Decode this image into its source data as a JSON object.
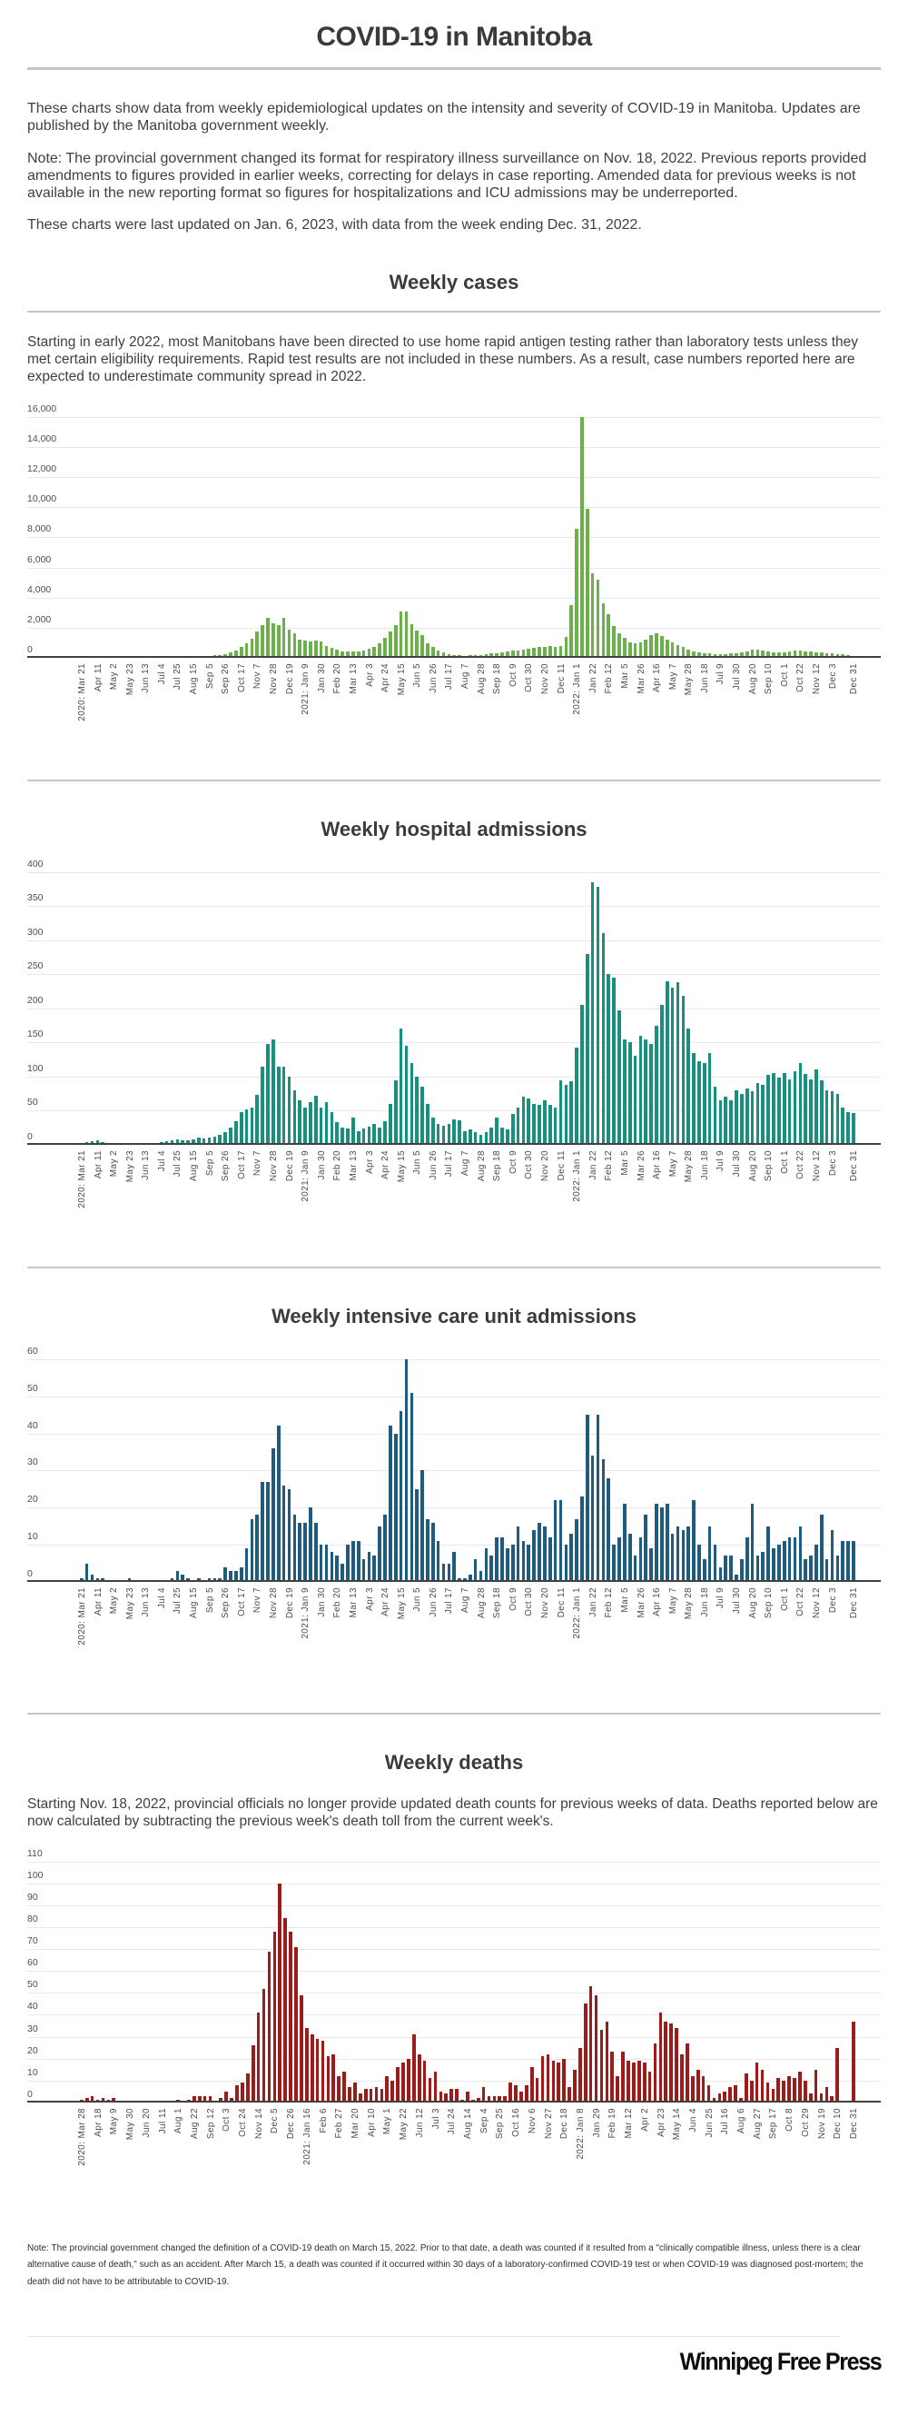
{
  "page": {
    "title": "COVID-19 in Manitoba",
    "intro_1": "These charts show data from weekly epidemiological updates on the intensity and severity of COVID-19 in Manitoba. Updates are published by the Manitoba government weekly.",
    "intro_2": "Note: The provincial government changed its format for respiratory illness surveillance on Nov. 18, 2022. Previous reports provided amendments to figures provided in earlier weeks, correcting for delays in case reporting. Amended data for previous weeks is not available in the new reporting format so figures for hospitalizations and ICU admissions may be underreported.",
    "intro_3": "These charts were last updated on Jan. 6, 2023, with data from the week ending Dec. 31, 2022.",
    "footer_note": "Note: The provincial government changed the definition of a COVID-19 death on March 15, 2022.  Prior to that date, a death was counted if it resulted from a \"clinically compatible illness, unless there is a clear alternative cause of death,\" such as an accident.  After March 15, a death was counted if it occurred within 30 days of a laboratory-confirmed COVID-19 test or when COVID-19 was diagnosed post-mortem; the death did not have to be attributable to COVID-19.",
    "publisher": "Winnipeg Free Press"
  },
  "sections": {
    "cases": {
      "title": "Weekly cases",
      "description": "Starting in early 2022, most Manitobans have been directed to use home rapid antigen testing rather than laboratory tests unless they met certain eligibility requirements. Rapid test results are not included in these numbers. As a result, case numbers reported here are expected to underestimate community spread in 2022."
    },
    "hospital": {
      "title": "Weekly hospital admissions"
    },
    "icu": {
      "title": "Weekly intensive care unit admissions"
    },
    "deaths": {
      "title": "Weekly deaths",
      "description": "Starting Nov. 18, 2022, provincial officials no longer provide updated death counts for previous weeks of data.  Deaths reported below are now calculated by subtracting the previous week's death toll from the current week's."
    }
  },
  "chart_data": [
    {
      "type": "bar",
      "title": "Weekly cases",
      "color": "#6cb04c",
      "ylim": [
        0,
        16000
      ],
      "y_step": 2000,
      "y_tick_labels": [
        "0",
        "2,000",
        "4,000",
        "6,000",
        "8,000",
        "10,000",
        "12,000",
        "14,000",
        "16,000"
      ],
      "x_tick_idx": [
        0,
        3,
        6,
        9,
        12,
        15,
        18,
        21,
        24,
        27,
        30,
        33,
        36,
        39,
        42,
        45,
        48,
        51,
        54,
        57,
        60,
        63,
        66,
        69,
        72,
        75,
        78,
        81,
        84,
        87,
        90,
        93,
        96,
        99,
        102,
        105,
        108,
        111,
        114,
        117,
        120,
        123,
        126,
        129,
        132,
        135,
        138,
        141,
        145
      ],
      "x_tick_labels": [
        "2020: Mar 21",
        "Apr 11",
        "May 2",
        "May 23",
        "Jun 13",
        "Jul 4",
        "Jul 25",
        "Aug 15",
        "Sep 5",
        "Sep 26",
        "Oct 17",
        "Nov 7",
        "Nov 28",
        "Dec 19",
        "2021: Jan 9",
        "Jan 30",
        "Feb 20",
        "Mar 13",
        "Apr 3",
        "Apr 24",
        "May 15",
        "Jun 5",
        "Jun 26",
        "Jul 17",
        "Aug 7",
        "Aug 28",
        "Sep 18",
        "Oct 9",
        "Oct 30",
        "Nov 20",
        "Dec 11",
        "2022: Jan 1",
        "Jan 22",
        "Feb 12",
        "Mar 5",
        "Mar 26",
        "Apr 16",
        "May 7",
        "May 28",
        "Jun 18",
        "Jul 9",
        "Jul 30",
        "Aug 20",
        "Sep 10",
        "Oct 1",
        "Oct 22",
        "Nov 12",
        "Dec 3",
        "Dec 31"
      ],
      "values": [
        20,
        35,
        60,
        55,
        40,
        30,
        25,
        15,
        10,
        10,
        15,
        10,
        15,
        10,
        15,
        20,
        30,
        40,
        60,
        80,
        70,
        90,
        110,
        130,
        120,
        150,
        200,
        250,
        350,
        500,
        700,
        950,
        1250,
        1750,
        2150,
        2650,
        2300,
        2200,
        2650,
        1900,
        1600,
        1200,
        1150,
        1100,
        1150,
        1100,
        800,
        650,
        550,
        450,
        400,
        400,
        450,
        500,
        600,
        750,
        950,
        1300,
        1750,
        2150,
        3100,
        3050,
        2250,
        1800,
        1500,
        950,
        700,
        500,
        350,
        250,
        200,
        150,
        140,
        150,
        170,
        200,
        250,
        300,
        330,
        380,
        420,
        460,
        500,
        560,
        620,
        660,
        700,
        750,
        800,
        720,
        780,
        1400,
        3500,
        8600,
        16000,
        9900,
        5600,
        5200,
        3600,
        2900,
        2100,
        1600,
        1300,
        1050,
        950,
        1000,
        1200,
        1500,
        1650,
        1450,
        1200,
        1050,
        850,
        700,
        550,
        450,
        380,
        320,
        270,
        230,
        210,
        230,
        270,
        310,
        360,
        430,
        520,
        560,
        470,
        420,
        380,
        360,
        390,
        430,
        460,
        480,
        440,
        410,
        380,
        350,
        320,
        290,
        260,
        220,
        170,
        120
      ]
    },
    {
      "type": "bar",
      "title": "Weekly hospital admissions",
      "color": "#17907e",
      "ylim": [
        0,
        400
      ],
      "y_step": 50,
      "y_tick_labels": [
        "0",
        "50",
        "100",
        "150",
        "200",
        "250",
        "300",
        "350",
        "400"
      ],
      "x_tick_idx": [
        0,
        3,
        6,
        9,
        12,
        15,
        18,
        21,
        24,
        27,
        30,
        33,
        36,
        39,
        42,
        45,
        48,
        51,
        54,
        57,
        60,
        63,
        66,
        69,
        72,
        75,
        78,
        81,
        84,
        87,
        90,
        93,
        96,
        99,
        102,
        105,
        108,
        111,
        114,
        117,
        120,
        123,
        126,
        129,
        132,
        135,
        138,
        141,
        145
      ],
      "x_tick_labels": [
        "2020: Mar 21",
        "Apr 11",
        "May 2",
        "May 23",
        "Jun 13",
        "Jul 4",
        "Jul 25",
        "Aug 15",
        "Sep 5",
        "Sep 26",
        "Oct 17",
        "Nov 7",
        "Nov 28",
        "Dec 19",
        "2021: Jan 9",
        "Jan 30",
        "Feb 20",
        "Mar 13",
        "Apr 3",
        "Apr 24",
        "May 15",
        "Jun 5",
        "Jun 26",
        "Jul 17",
        "Aug 7",
        "Aug 28",
        "Sep 18",
        "Oct 9",
        "Oct 30",
        "Nov 20",
        "Dec 11",
        "2022: Jan 1",
        "Jan 22",
        "Feb 12",
        "Mar 5",
        "Mar 26",
        "Apr 16",
        "May 7",
        "May 28",
        "Jun 18",
        "Jul 9",
        "Jul 30",
        "Aug 20",
        "Sep 10",
        "Oct 1",
        "Oct 22",
        "Nov 12",
        "Dec 3",
        "Dec 31"
      ],
      "values": [
        2,
        4,
        5,
        6,
        4,
        3,
        3,
        2,
        1,
        2,
        3,
        2,
        3,
        2,
        3,
        4,
        5,
        6,
        8,
        7,
        6,
        8,
        10,
        9,
        10,
        12,
        14,
        18,
        25,
        35,
        48,
        52,
        55,
        73,
        115,
        148,
        155,
        115,
        115,
        100,
        80,
        65,
        55,
        62,
        72,
        55,
        62,
        48,
        33,
        25,
        24,
        40,
        20,
        24,
        27,
        30,
        25,
        35,
        60,
        95,
        170,
        145,
        120,
        100,
        85,
        60,
        40,
        30,
        28,
        30,
        37,
        36,
        20,
        22,
        18,
        15,
        18,
        25,
        40,
        25,
        22,
        45,
        55,
        70,
        68,
        60,
        58,
        65,
        58,
        55,
        95,
        88,
        93,
        143,
        205,
        280,
        385,
        378,
        310,
        250,
        245,
        197,
        155,
        150,
        130,
        160,
        155,
        148,
        175,
        205,
        240,
        230,
        238,
        218,
        170,
        135,
        122,
        120,
        135,
        85,
        65,
        70,
        65,
        80,
        75,
        82,
        78,
        90,
        88,
        103,
        105,
        98,
        105,
        96,
        108,
        120,
        104,
        96,
        110,
        95,
        80,
        78,
        75,
        55,
        48,
        46
      ]
    },
    {
      "type": "bar",
      "title": "Weekly intensive care unit admissions",
      "color": "#1e5b7c",
      "ylim": [
        0,
        60
      ],
      "y_step": 10,
      "y_tick_labels": [
        "0",
        "10",
        "20",
        "30",
        "40",
        "50",
        "60"
      ],
      "x_tick_idx": [
        0,
        3,
        6,
        9,
        12,
        15,
        18,
        21,
        24,
        27,
        30,
        33,
        36,
        39,
        42,
        45,
        48,
        51,
        54,
        57,
        60,
        63,
        66,
        69,
        72,
        75,
        78,
        81,
        84,
        87,
        90,
        93,
        96,
        99,
        102,
        105,
        108,
        111,
        114,
        117,
        120,
        123,
        126,
        129,
        132,
        135,
        138,
        141,
        145
      ],
      "x_tick_labels": [
        "2020: Mar 21",
        "Apr 11",
        "May 2",
        "May 23",
        "Jun 13",
        "Jul 4",
        "Jul 25",
        "Aug 15",
        "Sep 5",
        "Sep 26",
        "Oct 17",
        "Nov 7",
        "Nov 28",
        "Dec 19",
        "2021: Jan 9",
        "Jan 30",
        "Feb 20",
        "Mar 13",
        "Apr 3",
        "Apr 24",
        "May 15",
        "Jun 5",
        "Jun 26",
        "Jul 17",
        "Aug 7",
        "Aug 28",
        "Sep 18",
        "Oct 9",
        "Oct 30",
        "Nov 20",
        "Dec 11",
        "2022: Jan 1",
        "Jan 22",
        "Feb 12",
        "Mar 5",
        "Mar 26",
        "Apr 16",
        "May 7",
        "May 28",
        "Jun 18",
        "Jul 9",
        "Jul 30",
        "Aug 20",
        "Sep 10",
        "Oct 1",
        "Oct 22",
        "Nov 12",
        "Dec 3",
        "Dec 31"
      ],
      "values": [
        1,
        5,
        2,
        1,
        1,
        0,
        0,
        0,
        0,
        1,
        0,
        0,
        0,
        0,
        0,
        0,
        0,
        1,
        3,
        2,
        1,
        0,
        1,
        0,
        1,
        1,
        1,
        4,
        3,
        3,
        4,
        9,
        17,
        18,
        27,
        27,
        36,
        42,
        26,
        25,
        18,
        16,
        16,
        20,
        16,
        10,
        10,
        8,
        7,
        5,
        10,
        11,
        11,
        6,
        8,
        7,
        15,
        18,
        42,
        40,
        46,
        60,
        51,
        25,
        30,
        17,
        16,
        11,
        5,
        5,
        8,
        1,
        1,
        2,
        6,
        3,
        9,
        7,
        12,
        12,
        9,
        10,
        15,
        11,
        10,
        14,
        16,
        15,
        12,
        22,
        22,
        10,
        13,
        17,
        23,
        45,
        34,
        45,
        33,
        28,
        10,
        12,
        21,
        13,
        7,
        12,
        18,
        9,
        21,
        20,
        21,
        13,
        15,
        14,
        15,
        22,
        10,
        6,
        15,
        10,
        4,
        7,
        7,
        2,
        6,
        12,
        21,
        7,
        8,
        15,
        9,
        10,
        11,
        12,
        12,
        15,
        6,
        7,
        10,
        18,
        6,
        14,
        7,
        11,
        11,
        11
      ]
    },
    {
      "type": "bar",
      "title": "Weekly deaths",
      "color": "#9c1b1b",
      "ylim": [
        0,
        110
      ],
      "y_step": 10,
      "y_tick_labels": [
        "0",
        "10",
        "20",
        "30",
        "40",
        "50",
        "60",
        "70",
        "80",
        "90",
        "100",
        "110"
      ],
      "x_tick_idx": [
        0,
        3,
        6,
        9,
        12,
        15,
        18,
        21,
        24,
        27,
        30,
        33,
        36,
        39,
        42,
        45,
        48,
        51,
        54,
        57,
        60,
        63,
        66,
        69,
        72,
        75,
        78,
        81,
        84,
        87,
        90,
        93,
        96,
        99,
        102,
        105,
        108,
        111,
        114,
        117,
        120,
        123,
        126,
        129,
        132,
        135,
        138,
        141,
        144
      ],
      "x_tick_labels": [
        "2020: Mar 28",
        "Apr 18",
        "May 9",
        "May 30",
        "Jun 20",
        "Jul 11",
        "Aug 1",
        "Aug 22",
        "Sep 12",
        "Oct 3",
        "Oct 24",
        "Nov 14",
        "Dec 5",
        "Dec 26",
        "2021: Jan 16",
        "Feb 6",
        "Feb 27",
        "Mar 20",
        "Apr 10",
        "May 1",
        "May 22",
        "Jun 12",
        "Jul 3",
        "Jul 24",
        "Aug 14",
        "Sep 4",
        "Sep 25",
        "Oct 16",
        "Nov 6",
        "Nov 27",
        "Dec 18",
        "2022: Jan 8",
        "Jan 29",
        "Feb 19",
        "Mar 12",
        "Apr 2",
        "Apr 23",
        "May 14",
        "Jun 4",
        "Jun 25",
        "Jul 16",
        "Aug 6",
        "Aug 27",
        "Sep 17",
        "Oct 8",
        "Oct 29",
        "Nov 19",
        "Dec 10",
        "Dec 31"
      ],
      "values": [
        1,
        2,
        3,
        1,
        2,
        1,
        2,
        0,
        0,
        0,
        0,
        0,
        0,
        0,
        0,
        0,
        0,
        0,
        1,
        0,
        1,
        3,
        3,
        3,
        3,
        0,
        2,
        5,
        2,
        8,
        9,
        13,
        26,
        41,
        52,
        69,
        78,
        100,
        84,
        78,
        71,
        49,
        34,
        31,
        29,
        28,
        21,
        22,
        12,
        14,
        7,
        9,
        4,
        6,
        6,
        7,
        6,
        12,
        10,
        16,
        18,
        20,
        31,
        22,
        19,
        11,
        14,
        5,
        4,
        6,
        6,
        1,
        5,
        1,
        2,
        7,
        3,
        3,
        3,
        3,
        9,
        8,
        5,
        8,
        16,
        11,
        21,
        22,
        19,
        18,
        20,
        7,
        15,
        25,
        45,
        53,
        49,
        33,
        37,
        23,
        12,
        23,
        19,
        18,
        19,
        18,
        14,
        27,
        41,
        37,
        36,
        34,
        22,
        27,
        12,
        15,
        12,
        8,
        2,
        4,
        5,
        7,
        8,
        2,
        13,
        10,
        18,
        15,
        9,
        6,
        11,
        10,
        12,
        11,
        14,
        10,
        4,
        15,
        4,
        7,
        3,
        25,
        0,
        0,
        37
      ]
    }
  ]
}
